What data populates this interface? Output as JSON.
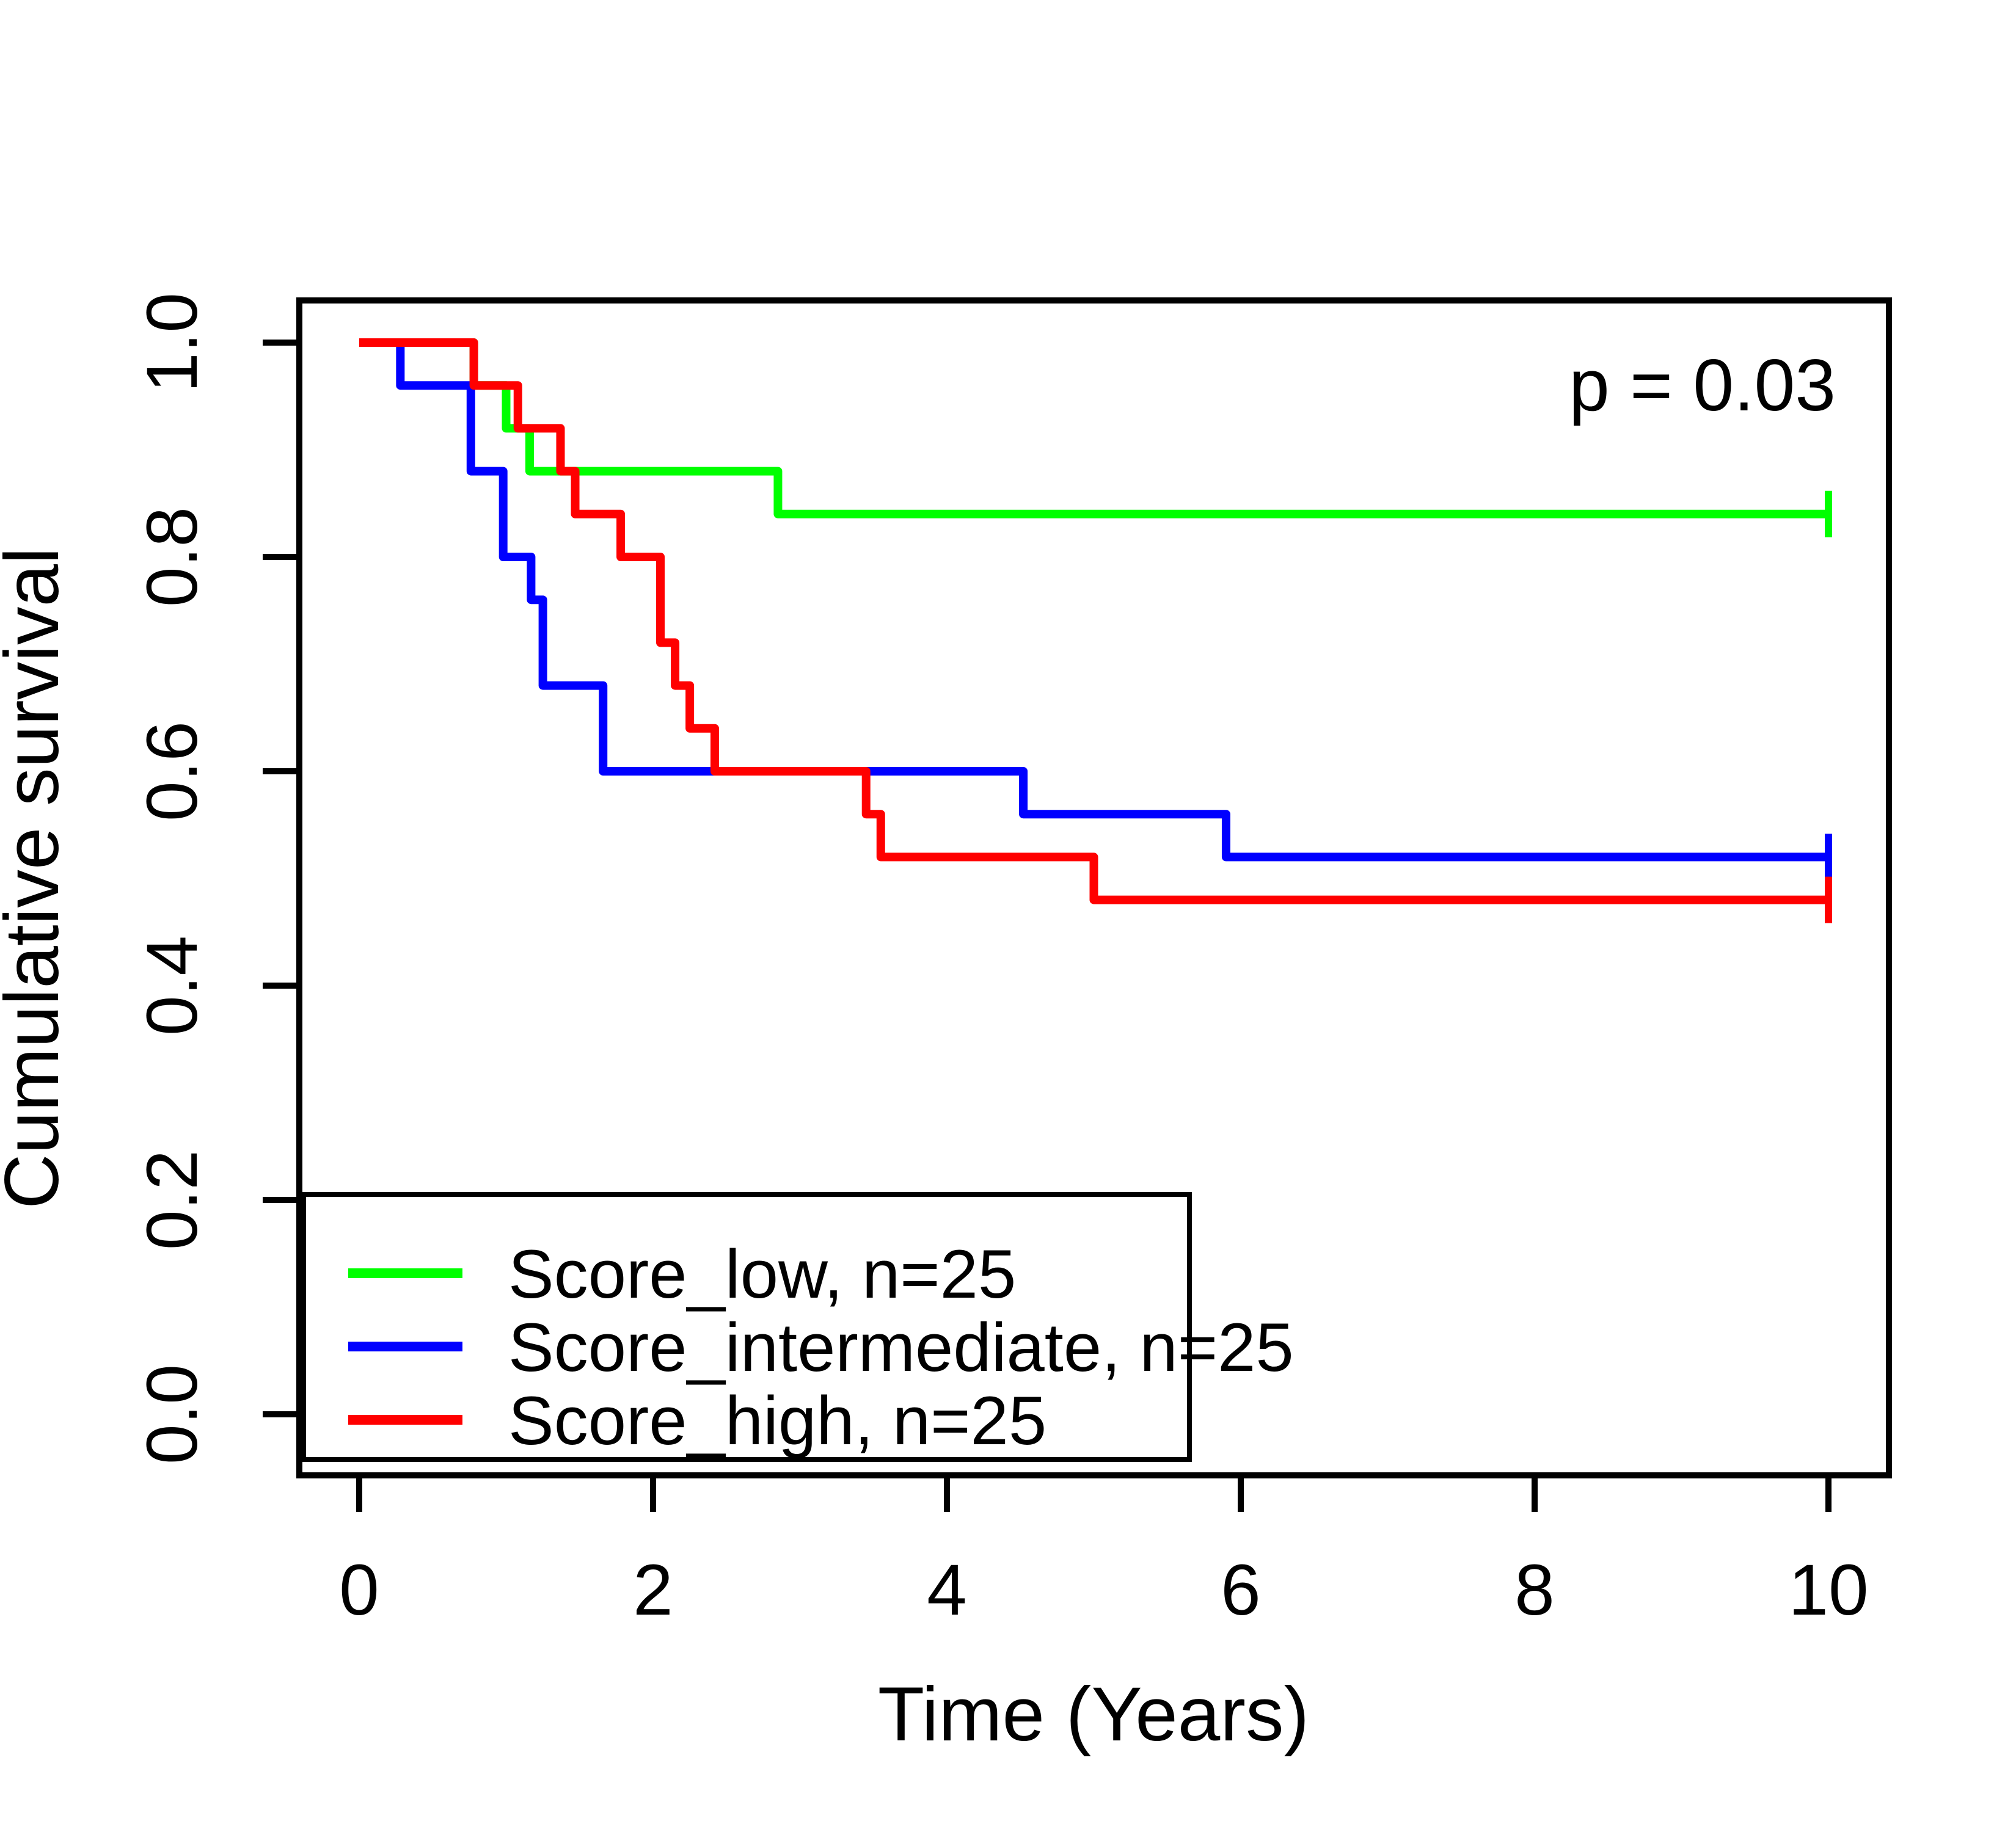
{
  "chart_data": {
    "type": "line",
    "subtype": "kaplan-meier-step",
    "title": "",
    "xlabel": "Time (Years)",
    "ylabel": "Cumulative survival",
    "annotation": "p = 0.03",
    "x_axis": {
      "min": 0,
      "max": 10,
      "ticks": [
        0,
        2,
        4,
        6,
        8,
        10
      ]
    },
    "y_axis": {
      "min": 0.0,
      "max": 1.0,
      "ticks": [
        0.0,
        0.2,
        0.4,
        0.6,
        0.8,
        1.0
      ],
      "tick_labels": [
        "0.0",
        "0.2",
        "0.4",
        "0.6",
        "0.8",
        "1.0"
      ]
    },
    "grid": false,
    "legend_position": "bottom-left",
    "series": [
      {
        "name": "Score_low, n=25",
        "color": "#00FF00",
        "steps": [
          [
            0,
            1.0
          ],
          [
            0.78,
            0.96
          ],
          [
            1.0,
            0.92
          ],
          [
            1.16,
            0.88
          ],
          [
            2.85,
            0.84
          ],
          [
            10,
            0.84
          ]
        ],
        "censor_times": [
          10
        ],
        "final_survival": 0.84
      },
      {
        "name": "Score_intermediate, n=25",
        "color": "#0000FF",
        "steps": [
          [
            0,
            1.0
          ],
          [
            0.28,
            0.96
          ],
          [
            0.76,
            0.88
          ],
          [
            0.98,
            0.8
          ],
          [
            1.17,
            0.76
          ],
          [
            1.25,
            0.68
          ],
          [
            1.66,
            0.6
          ],
          [
            4.52,
            0.56
          ],
          [
            5.9,
            0.52
          ],
          [
            10,
            0.52
          ]
        ],
        "censor_times": [
          10
        ],
        "final_survival": 0.52
      },
      {
        "name": "Score_high, n=25",
        "color": "#FF0000",
        "steps": [
          [
            0,
            1.0
          ],
          [
            0.78,
            0.96
          ],
          [
            1.08,
            0.92
          ],
          [
            1.37,
            0.88
          ],
          [
            1.47,
            0.84
          ],
          [
            1.78,
            0.8
          ],
          [
            2.05,
            0.72
          ],
          [
            2.15,
            0.68
          ],
          [
            2.25,
            0.64
          ],
          [
            2.42,
            0.6
          ],
          [
            3.45,
            0.56
          ],
          [
            3.55,
            0.52
          ],
          [
            5.0,
            0.48
          ],
          [
            10,
            0.48
          ]
        ],
        "censor_times": [
          10
        ],
        "final_survival": 0.48
      }
    ],
    "colors": {
      "axis": "#000000",
      "background": "#ffffff"
    }
  },
  "legend": {
    "entries": [
      {
        "label": "Score_low, n=25"
      },
      {
        "label": "Score_intermediate, n=25"
      },
      {
        "label": "Score_high, n=25"
      }
    ]
  },
  "annotation": {
    "p_value_label": "p = 0.03"
  },
  "axes": {
    "x_title": "Time (Years)",
    "y_title": "Cumulative survival"
  }
}
